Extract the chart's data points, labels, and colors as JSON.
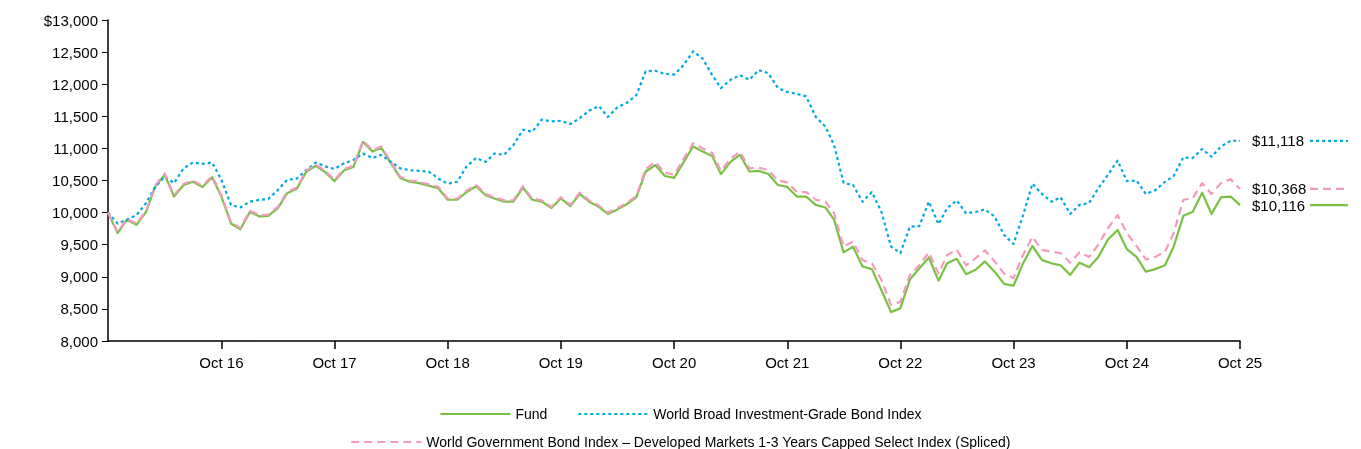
{
  "chart_data": {
    "type": "line",
    "legend": "bottom",
    "grid": false,
    "marker": "none",
    "x": [
      "2015-10",
      "2015-11",
      "2015-12",
      "2016-01",
      "2016-02",
      "2016-03",
      "2016-04",
      "2016-05",
      "2016-06",
      "2016-07",
      "2016-08",
      "2016-09",
      "2016-10",
      "2016-11",
      "2016-12",
      "2017-01",
      "2017-02",
      "2017-03",
      "2017-04",
      "2017-05",
      "2017-06",
      "2017-07",
      "2017-08",
      "2017-09",
      "2017-10",
      "2017-11",
      "2017-12",
      "2018-01",
      "2018-02",
      "2018-03",
      "2018-04",
      "2018-05",
      "2018-06",
      "2018-07",
      "2018-08",
      "2018-09",
      "2018-10",
      "2018-11",
      "2018-12",
      "2019-01",
      "2019-02",
      "2019-03",
      "2019-04",
      "2019-05",
      "2019-06",
      "2019-07",
      "2019-08",
      "2019-09",
      "2019-10",
      "2019-11",
      "2019-12",
      "2020-01",
      "2020-02",
      "2020-03",
      "2020-04",
      "2020-05",
      "2020-06",
      "2020-07",
      "2020-08",
      "2020-09",
      "2020-10",
      "2020-11",
      "2020-12",
      "2021-01",
      "2021-02",
      "2021-03",
      "2021-04",
      "2021-05",
      "2021-06",
      "2021-07",
      "2021-08",
      "2021-09",
      "2021-10",
      "2021-11",
      "2021-12",
      "2022-01",
      "2022-02",
      "2022-03",
      "2022-04",
      "2022-05",
      "2022-06",
      "2022-07",
      "2022-08",
      "2022-09",
      "2022-10",
      "2022-11",
      "2022-12",
      "2023-01",
      "2023-02",
      "2023-03",
      "2023-04",
      "2023-05",
      "2023-06",
      "2023-07",
      "2023-08",
      "2023-09",
      "2023-10",
      "2023-11",
      "2023-12",
      "2024-01",
      "2024-02",
      "2024-03",
      "2024-04",
      "2024-05",
      "2024-06",
      "2024-07",
      "2024-08",
      "2024-09",
      "2024-10",
      "2024-11",
      "2024-12",
      "2025-01",
      "2025-02",
      "2025-03",
      "2025-04",
      "2025-05",
      "2025-06",
      "2025-07",
      "2025-08",
      "2025-09",
      "2025-10"
    ],
    "xlim": [
      "2015-10",
      "2025-10"
    ],
    "xticks": [
      {
        "value": "2016-10",
        "label": "Oct 16"
      },
      {
        "value": "2017-10",
        "label": "Oct 17"
      },
      {
        "value": "2018-10",
        "label": "Oct 18"
      },
      {
        "value": "2019-10",
        "label": "Oct 19"
      },
      {
        "value": "2020-10",
        "label": "Oct 20"
      },
      {
        "value": "2021-10",
        "label": "Oct 21"
      },
      {
        "value": "2022-10",
        "label": "Oct 22"
      },
      {
        "value": "2023-10",
        "label": "Oct 23"
      },
      {
        "value": "2024-10",
        "label": "Oct 24"
      },
      {
        "value": "2025-10",
        "label": "Oct 25"
      }
    ],
    "ylim": [
      8000,
      13000
    ],
    "yticks": [
      {
        "value": 8000,
        "label": "8,000"
      },
      {
        "value": 8500,
        "label": "8,500"
      },
      {
        "value": 9000,
        "label": "9,000"
      },
      {
        "value": 9500,
        "label": "9,500"
      },
      {
        "value": 10000,
        "label": "10,000"
      },
      {
        "value": 10500,
        "label": "10,500"
      },
      {
        "value": 11000,
        "label": "11,000"
      },
      {
        "value": 11500,
        "label": "11,500"
      },
      {
        "value": 12000,
        "label": "12,000"
      },
      {
        "value": 12500,
        "label": "12,500"
      },
      {
        "value": 13000,
        "label": "$13,000"
      }
    ],
    "series": [
      {
        "name": "Fund",
        "color": "#7ac143",
        "line_style": "solid",
        "values": [
          10000,
          9680,
          9890,
          9810,
          10010,
          10400,
          10590,
          10250,
          10430,
          10480,
          10400,
          10550,
          10250,
          9830,
          9740,
          10010,
          9940,
          9950,
          10070,
          10300,
          10370,
          10630,
          10730,
          10630,
          10490,
          10660,
          10710,
          11100,
          10950,
          11010,
          10770,
          10540,
          10480,
          10460,
          10420,
          10380,
          10200,
          10200,
          10320,
          10410,
          10270,
          10220,
          10170,
          10170,
          10390,
          10200,
          10170,
          10070,
          10220,
          10100,
          10290,
          10170,
          10090,
          9980,
          10050,
          10130,
          10240,
          10640,
          10740,
          10570,
          10540,
          10790,
          11030,
          10950,
          10880,
          10600,
          10790,
          10900,
          10640,
          10650,
          10600,
          10430,
          10400,
          10250,
          10250,
          10120,
          10080,
          9890,
          9380,
          9470,
          9160,
          9120,
          8790,
          8450,
          8510,
          8960,
          9130,
          9300,
          8940,
          9210,
          9280,
          9040,
          9110,
          9240,
          9080,
          8890,
          8860,
          9210,
          9480,
          9260,
          9210,
          9180,
          9030,
          9220,
          9150,
          9310,
          9580,
          9730,
          9430,
          9310,
          9080,
          9120,
          9180,
          9470,
          9950,
          10010,
          10310,
          9980,
          10240,
          10250,
          10116
        ]
      },
      {
        "name": "World Broad Investment-Grade Bond Index",
        "color": "#00a9e0",
        "line_style": "dotted",
        "values": [
          10000,
          9830,
          9890,
          9960,
          10150,
          10400,
          10560,
          10460,
          10690,
          10780,
          10760,
          10780,
          10510,
          10120,
          10080,
          10170,
          10200,
          10210,
          10350,
          10510,
          10530,
          10660,
          10780,
          10720,
          10680,
          10770,
          10820,
          10920,
          10850,
          10900,
          10790,
          10690,
          10660,
          10650,
          10640,
          10530,
          10450,
          10480,
          10720,
          10850,
          10790,
          10920,
          10900,
          11050,
          11290,
          11260,
          11450,
          11420,
          11430,
          11380,
          11470,
          11590,
          11660,
          11490,
          11640,
          11710,
          11830,
          12200,
          12210,
          12160,
          12150,
          12300,
          12510,
          12400,
          12140,
          11940,
          12070,
          12140,
          12070,
          12220,
          12170,
          11940,
          11880,
          11850,
          11810,
          11490,
          11340,
          11050,
          10460,
          10430,
          10170,
          10320,
          10010,
          9470,
          9370,
          9780,
          9790,
          10170,
          9820,
          10070,
          10190,
          9990,
          10010,
          10050,
          9940,
          9650,
          9510,
          9960,
          10450,
          10290,
          10170,
          10240,
          9980,
          10120,
          10150,
          10380,
          10590,
          10810,
          10490,
          10500,
          10290,
          10350,
          10480,
          10570,
          10860,
          10850,
          10990,
          10870,
          11030,
          11120,
          11118
        ]
      },
      {
        "name": "World Government Bond Index – Developed Markets 1-3 Years Capped Select Index (Spliced)",
        "color": "#f49ac1",
        "line_style": "dashed",
        "values": [
          10000,
          9700,
          9900,
          9830,
          10030,
          10420,
          10610,
          10270,
          10450,
          10500,
          10420,
          10570,
          10270,
          9850,
          9760,
          10030,
          9960,
          9970,
          10090,
          10320,
          10390,
          10650,
          10750,
          10650,
          10510,
          10680,
          10730,
          11120,
          10970,
          11030,
          10790,
          10560,
          10500,
          10480,
          10440,
          10400,
          10220,
          10220,
          10340,
          10430,
          10290,
          10240,
          10190,
          10190,
          10410,
          10220,
          10190,
          10090,
          10240,
          10120,
          10310,
          10190,
          10110,
          10000,
          10070,
          10150,
          10260,
          10680,
          10790,
          10620,
          10590,
          10840,
          11080,
          11000,
          10930,
          10650,
          10840,
          10950,
          10690,
          10700,
          10660,
          10500,
          10470,
          10320,
          10320,
          10200,
          10170,
          9990,
          9470,
          9550,
          9260,
          9210,
          8950,
          8560,
          8610,
          9030,
          9180,
          9380,
          9050,
          9340,
          9420,
          9180,
          9290,
          9410,
          9240,
          9050,
          8980,
          9340,
          9620,
          9420,
          9390,
          9370,
          9220,
          9380,
          9310,
          9500,
          9760,
          9960,
          9680,
          9480,
          9270,
          9310,
          9390,
          9680,
          10200,
          10220,
          10460,
          10290,
          10460,
          10520,
          10368
        ]
      }
    ],
    "annotations": [
      {
        "text": "$10,116",
        "x": "2025-10",
        "y": 10116
      },
      {
        "text": "$11,118",
        "x": "2025-10",
        "y": 11118
      },
      {
        "text": "$10,368",
        "x": "2025-10",
        "y": 10368
      }
    ]
  }
}
